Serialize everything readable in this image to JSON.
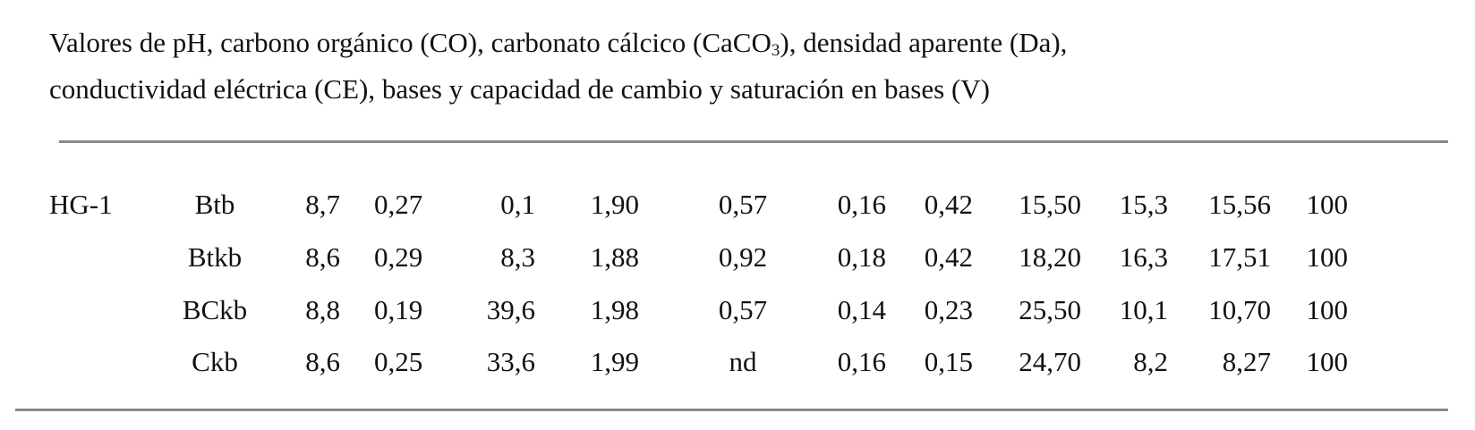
{
  "caption": {
    "part1": "Valores de pH, carbono orgánico (CO), carbonato cálcico (CaCO",
    "subscript": "3",
    "part2": "), densidad aparente (Da),",
    "line2": "conductividad eléctrica (CE), bases y capacidad de cambio y saturación en bases (V)"
  },
  "table": {
    "rows": [
      [
        "HG-1",
        "Btb",
        "8,7",
        "0,27",
        "0,1",
        "1,90",
        "0,57",
        "0,16",
        "0,42",
        "15,50",
        "15,3",
        "15,56",
        "100"
      ],
      [
        "",
        "Btkb",
        "8,6",
        "0,29",
        "8,3",
        "1,88",
        "0,92",
        "0,18",
        "0,42",
        "18,20",
        "16,3",
        "17,51",
        "100"
      ],
      [
        "",
        "BCkb",
        "8,8",
        "0,19",
        "39,6",
        "1,98",
        "0,57",
        "0,14",
        "0,23",
        "25,50",
        "10,1",
        "10,70",
        "100"
      ],
      [
        "",
        "Ckb",
        "8,6",
        "0,25",
        "33,6",
        "1,99",
        "nd",
        "0,16",
        "0,15",
        "24,70",
        "8,2",
        "8,27",
        "100"
      ]
    ]
  }
}
